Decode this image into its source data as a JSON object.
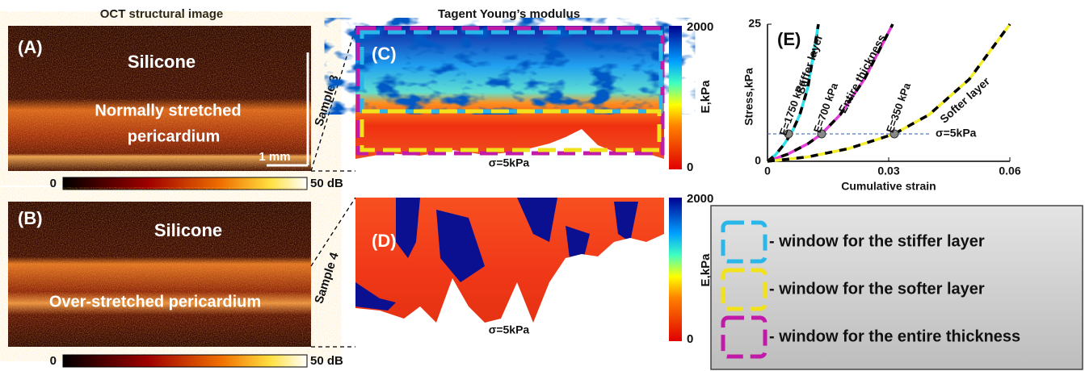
{
  "headers": {
    "oct": "OCT structural image",
    "modulus": "Tagent Young’s modulus"
  },
  "panel_a": {
    "label": "(A)",
    "material": "Silicone",
    "tissue": [
      "Normally stretched",
      "pericardium"
    ],
    "scale_bar": "1 mm",
    "colorbar": {
      "min": "0",
      "max": "50 dB"
    }
  },
  "panel_b": {
    "label": "(B)",
    "material": "Silicone",
    "tissue": "Over-stretched pericardium",
    "colorbar": {
      "min": "0",
      "max": "50 dB"
    }
  },
  "panel_c": {
    "label": "(C)",
    "sample": "Sample 3",
    "stress": "σ=5kPa",
    "colorbar": {
      "max": "2000",
      "min": "0",
      "unit": "E,kPa"
    }
  },
  "panel_d": {
    "label": "(D)",
    "sample": "Sample 4",
    "stress": "σ=5kPa",
    "colorbar": {
      "max": "2000",
      "min": "0",
      "unit": "E,kPa"
    }
  },
  "legend": [
    {
      "color": "#29b6e8",
      "label": "- window for the stiffer layer"
    },
    {
      "color": "#f2e21c",
      "label": "- window for the softer layer"
    },
    {
      "color": "#c21aa8",
      "label": "- window for the entire thickness"
    }
  ],
  "chart_data": {
    "type": "line",
    "panel_label": "(E)",
    "xlabel": "Cumulative strain",
    "ylabel": "Stress,kPa",
    "xlim": [
      0,
      0.06
    ],
    "ylim": [
      0,
      25
    ],
    "xticks": [
      0,
      0.03,
      0.06
    ],
    "yticks": [
      0,
      25
    ],
    "series": [
      {
        "name": "Stiffer layer",
        "color": "#2ee0e8",
        "x": [
          0,
          0.002,
          0.004,
          0.006,
          0.008,
          0.01,
          0.0126
        ],
        "values": [
          0,
          1.2,
          3,
          5.2,
          8.5,
          13.5,
          25
        ]
      },
      {
        "name": "Entire thickness",
        "color": "#e43cd8",
        "x": [
          0,
          0.005,
          0.01,
          0.0134,
          0.018,
          0.024,
          0.031
        ],
        "values": [
          0,
          1.3,
          3.2,
          5,
          8.5,
          15,
          25
        ]
      },
      {
        "name": "Softer layer",
        "color": "#f4ee2a",
        "x": [
          0,
          0.01,
          0.02,
          0.0314,
          0.04,
          0.05,
          0.06
        ],
        "values": [
          0,
          0.8,
          2.3,
          5,
          8.5,
          15,
          25
        ]
      }
    ],
    "annotations": [
      {
        "x": 0.0052,
        "y": 5,
        "label": "E=1750 kPa"
      },
      {
        "x": 0.0134,
        "y": 5,
        "label": "E=700 kPa"
      },
      {
        "x": 0.0314,
        "y": 5,
        "label": "E=350 kPa"
      }
    ],
    "reference": {
      "value": 5,
      "xmax": 0.04,
      "label": "σ=5kPa"
    }
  }
}
